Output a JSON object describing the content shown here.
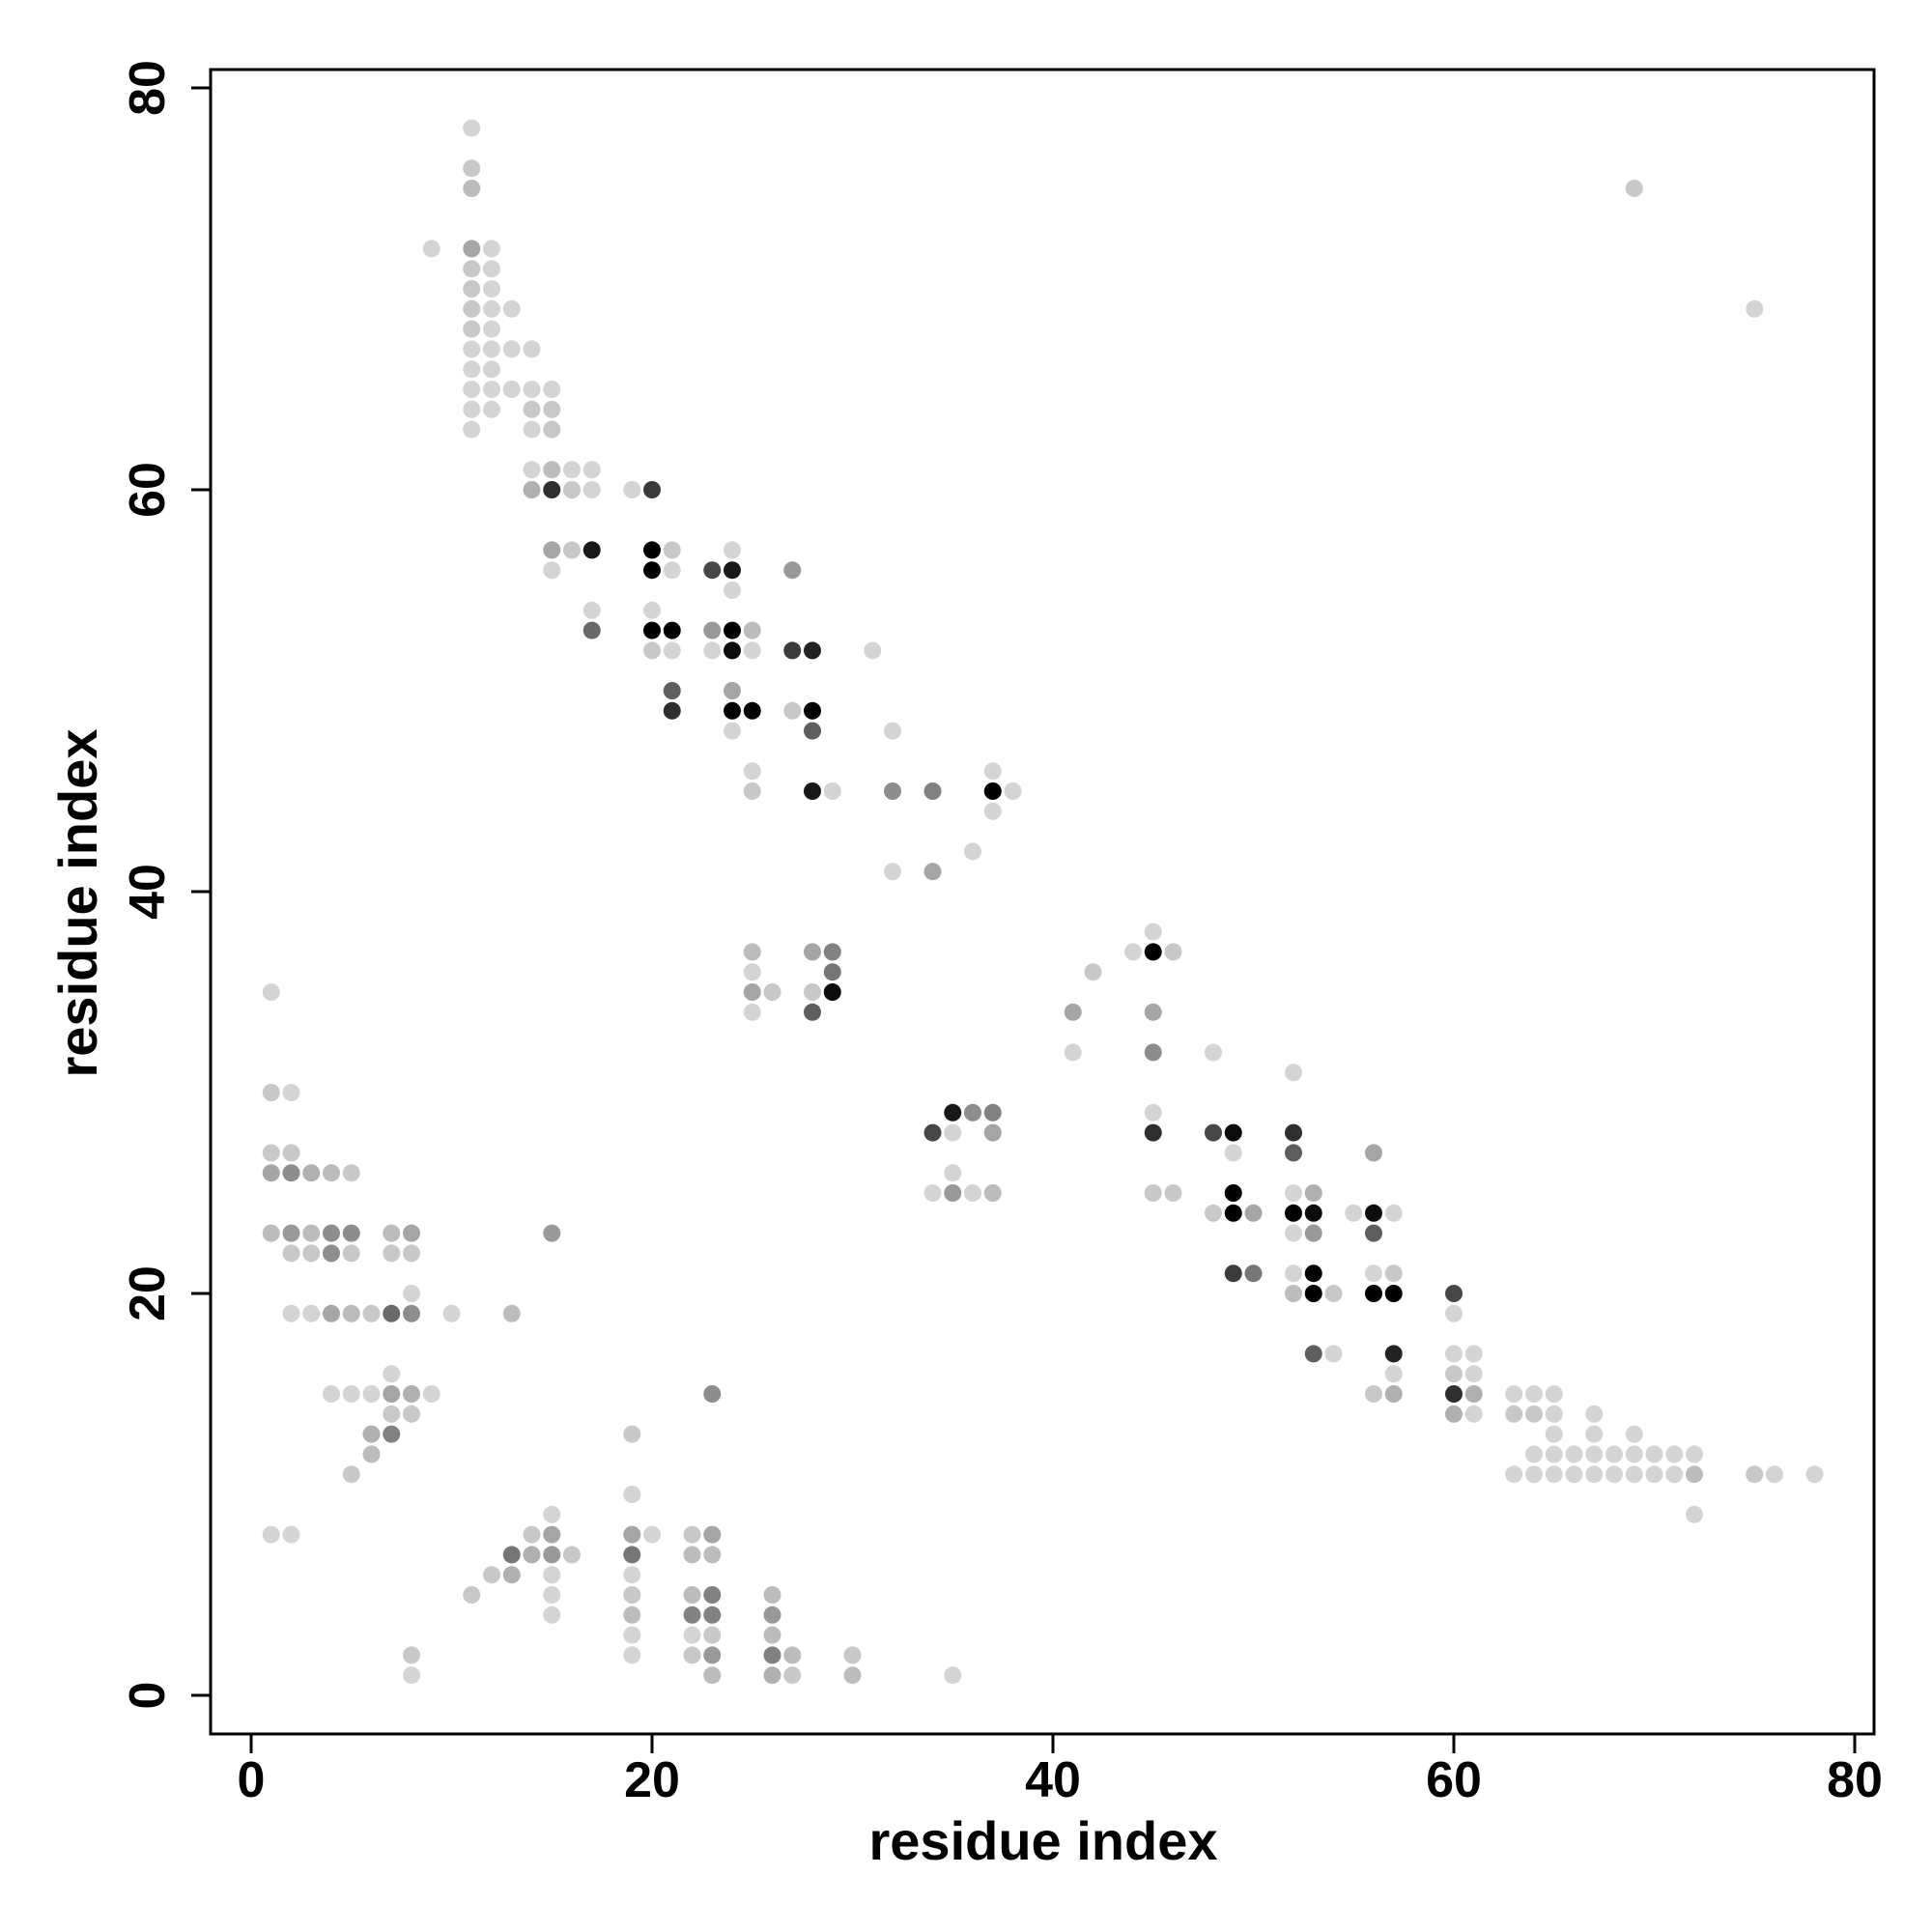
{
  "chart_data": {
    "type": "scatter",
    "title": "",
    "xlabel": "residue index",
    "ylabel": "residue index",
    "xlim": [
      -2,
      81
    ],
    "ylim": [
      -2,
      81
    ],
    "xticks": [
      0,
      20,
      40,
      60,
      80
    ],
    "yticks": [
      0,
      20,
      40,
      60,
      80
    ],
    "grid": false,
    "legend": "none",
    "marker_color": "#000000",
    "point_weight_scale": "0 = lightest gray, 1 = black",
    "points": [
      [
        11,
        78,
        0.1
      ],
      [
        11,
        76,
        0.15
      ],
      [
        11,
        75,
        0.2
      ],
      [
        9,
        72,
        0.1
      ],
      [
        11,
        72,
        0.3
      ],
      [
        12,
        72,
        0.1
      ],
      [
        11,
        71,
        0.15
      ],
      [
        12,
        71,
        0.1
      ],
      [
        11,
        70,
        0.15
      ],
      [
        12,
        70,
        0.1
      ],
      [
        11,
        69,
        0.15
      ],
      [
        12,
        69,
        0.1
      ],
      [
        13,
        69,
        0.1
      ],
      [
        11,
        68,
        0.15
      ],
      [
        12,
        68,
        0.1
      ],
      [
        11,
        67,
        0.1
      ],
      [
        12,
        67,
        0.1
      ],
      [
        13,
        67,
        0.1
      ],
      [
        14,
        67,
        0.1
      ],
      [
        11,
        66,
        0.1
      ],
      [
        12,
        66,
        0.1
      ],
      [
        11,
        65,
        0.1
      ],
      [
        12,
        65,
        0.1
      ],
      [
        13,
        65,
        0.1
      ],
      [
        14,
        65,
        0.1
      ],
      [
        15,
        65,
        0.1
      ],
      [
        11,
        64,
        0.1
      ],
      [
        12,
        64,
        0.1
      ],
      [
        14,
        64,
        0.15
      ],
      [
        15,
        64,
        0.15
      ],
      [
        11,
        63,
        0.1
      ],
      [
        14,
        63,
        0.1
      ],
      [
        15,
        63,
        0.15
      ],
      [
        14,
        61,
        0.1
      ],
      [
        15,
        61,
        0.2
      ],
      [
        16,
        61,
        0.1
      ],
      [
        17,
        61,
        0.1
      ],
      [
        14,
        60,
        0.25
      ],
      [
        15,
        60,
        0.8
      ],
      [
        16,
        60,
        0.15
      ],
      [
        17,
        60,
        0.1
      ],
      [
        19,
        60,
        0.1
      ],
      [
        20,
        60,
        0.75
      ],
      [
        15,
        57,
        0.3
      ],
      [
        16,
        57,
        0.15
      ],
      [
        17,
        57,
        0.9
      ],
      [
        20,
        57,
        1.0
      ],
      [
        21,
        57,
        0.15
      ],
      [
        24,
        57,
        0.1
      ],
      [
        15,
        56,
        0.1
      ],
      [
        20,
        56,
        1.0
      ],
      [
        21,
        56,
        0.1
      ],
      [
        23,
        56,
        0.7
      ],
      [
        24,
        56,
        0.9
      ],
      [
        27,
        56,
        0.35
      ],
      [
        24,
        55,
        0.1
      ],
      [
        17,
        54,
        0.1
      ],
      [
        20,
        54,
        0.1
      ],
      [
        17,
        53,
        0.55
      ],
      [
        20,
        53,
        1.0
      ],
      [
        21,
        53,
        1.0
      ],
      [
        23,
        53,
        0.35
      ],
      [
        24,
        53,
        1.0
      ],
      [
        25,
        53,
        0.2
      ],
      [
        20,
        52,
        0.15
      ],
      [
        21,
        52,
        0.1
      ],
      [
        23,
        52,
        0.1
      ],
      [
        24,
        52,
        0.95
      ],
      [
        25,
        52,
        0.1
      ],
      [
        27,
        52,
        0.75
      ],
      [
        28,
        52,
        0.85
      ],
      [
        31,
        52,
        0.1
      ],
      [
        21,
        50,
        0.6
      ],
      [
        24,
        50,
        0.3
      ],
      [
        21,
        49,
        0.8
      ],
      [
        24,
        49,
        1.0
      ],
      [
        25,
        49,
        1.0
      ],
      [
        27,
        49,
        0.15
      ],
      [
        28,
        49,
        1.0
      ],
      [
        24,
        48,
        0.1
      ],
      [
        28,
        48,
        0.6
      ],
      [
        32,
        48,
        0.1
      ],
      [
        25,
        46,
        0.1
      ],
      [
        37,
        46,
        0.1
      ],
      [
        25,
        45,
        0.15
      ],
      [
        28,
        45,
        0.9
      ],
      [
        29,
        45,
        0.1
      ],
      [
        32,
        45,
        0.4
      ],
      [
        34,
        45,
        0.45
      ],
      [
        37,
        45,
        1.0
      ],
      [
        38,
        45,
        0.1
      ],
      [
        37,
        44,
        0.1
      ],
      [
        36,
        42,
        0.1
      ],
      [
        32,
        41,
        0.1
      ],
      [
        34,
        41,
        0.3
      ],
      [
        45,
        38,
        0.1
      ],
      [
        25,
        37,
        0.2
      ],
      [
        28,
        37,
        0.3
      ],
      [
        29,
        37,
        0.45
      ],
      [
        44,
        37,
        0.1
      ],
      [
        45,
        37,
        1.0
      ],
      [
        46,
        37,
        0.15
      ],
      [
        25,
        36,
        0.1
      ],
      [
        29,
        36,
        0.5
      ],
      [
        42,
        36,
        0.15
      ],
      [
        1,
        35,
        0.1
      ],
      [
        25,
        35,
        0.3
      ],
      [
        26,
        35,
        0.15
      ],
      [
        28,
        35,
        0.15
      ],
      [
        29,
        35,
        0.95
      ],
      [
        25,
        34,
        0.1
      ],
      [
        28,
        34,
        0.6
      ],
      [
        41,
        34,
        0.3
      ],
      [
        45,
        34,
        0.3
      ],
      [
        41,
        32,
        0.1
      ],
      [
        45,
        32,
        0.4
      ],
      [
        48,
        32,
        0.1
      ],
      [
        52,
        31,
        0.1
      ],
      [
        1,
        30,
        0.15
      ],
      [
        2,
        30,
        0.1
      ],
      [
        35,
        29,
        0.9
      ],
      [
        36,
        29,
        0.4
      ],
      [
        37,
        29,
        0.45
      ],
      [
        45,
        29,
        0.1
      ],
      [
        34,
        28,
        0.7
      ],
      [
        35,
        28,
        0.1
      ],
      [
        37,
        28,
        0.3
      ],
      [
        45,
        28,
        0.8
      ],
      [
        48,
        28,
        0.7
      ],
      [
        49,
        28,
        0.95
      ],
      [
        52,
        28,
        0.8
      ],
      [
        1,
        27,
        0.15
      ],
      [
        2,
        27,
        0.15
      ],
      [
        49,
        27,
        0.1
      ],
      [
        52,
        27,
        0.6
      ],
      [
        56,
        27,
        0.3
      ],
      [
        1,
        26,
        0.3
      ],
      [
        2,
        26,
        0.4
      ],
      [
        3,
        26,
        0.25
      ],
      [
        4,
        26,
        0.2
      ],
      [
        5,
        26,
        0.15
      ],
      [
        35,
        26,
        0.1
      ],
      [
        34,
        25,
        0.1
      ],
      [
        35,
        25,
        0.35
      ],
      [
        36,
        25,
        0.1
      ],
      [
        37,
        25,
        0.2
      ],
      [
        45,
        25,
        0.15
      ],
      [
        46,
        25,
        0.15
      ],
      [
        49,
        25,
        1.0
      ],
      [
        52,
        25,
        0.1
      ],
      [
        53,
        25,
        0.25
      ],
      [
        48,
        24,
        0.15
      ],
      [
        49,
        24,
        1.0
      ],
      [
        50,
        24,
        0.3
      ],
      [
        52,
        24,
        1.0
      ],
      [
        53,
        24,
        0.95
      ],
      [
        55,
        24,
        0.1
      ],
      [
        56,
        24,
        0.95
      ],
      [
        57,
        24,
        0.1
      ],
      [
        1,
        23,
        0.2
      ],
      [
        2,
        23,
        0.35
      ],
      [
        3,
        23,
        0.2
      ],
      [
        4,
        23,
        0.4
      ],
      [
        5,
        23,
        0.4
      ],
      [
        7,
        23,
        0.2
      ],
      [
        8,
        23,
        0.3
      ],
      [
        15,
        23,
        0.35
      ],
      [
        52,
        23,
        0.1
      ],
      [
        53,
        23,
        0.35
      ],
      [
        56,
        23,
        0.6
      ],
      [
        2,
        22,
        0.15
      ],
      [
        3,
        22,
        0.15
      ],
      [
        4,
        22,
        0.4
      ],
      [
        5,
        22,
        0.15
      ],
      [
        7,
        22,
        0.15
      ],
      [
        8,
        22,
        0.15
      ],
      [
        49,
        21,
        0.75
      ],
      [
        50,
        21,
        0.5
      ],
      [
        52,
        21,
        0.1
      ],
      [
        53,
        21,
        1.0
      ],
      [
        56,
        21,
        0.1
      ],
      [
        57,
        21,
        0.15
      ],
      [
        8,
        20,
        0.1
      ],
      [
        52,
        20,
        0.2
      ],
      [
        53,
        20,
        1.0
      ],
      [
        54,
        20,
        0.15
      ],
      [
        56,
        20,
        1.0
      ],
      [
        57,
        20,
        1.0
      ],
      [
        60,
        20,
        0.7
      ],
      [
        2,
        19,
        0.1
      ],
      [
        3,
        19,
        0.1
      ],
      [
        4,
        19,
        0.3
      ],
      [
        5,
        19,
        0.2
      ],
      [
        6,
        19,
        0.15
      ],
      [
        7,
        19,
        0.55
      ],
      [
        8,
        19,
        0.4
      ],
      [
        10,
        19,
        0.1
      ],
      [
        13,
        19,
        0.2
      ],
      [
        60,
        19,
        0.1
      ],
      [
        60,
        17,
        0.1
      ],
      [
        61,
        17,
        0.1
      ],
      [
        53,
        17,
        0.6
      ],
      [
        54,
        17,
        0.1
      ],
      [
        57,
        17,
        0.85
      ],
      [
        7,
        16,
        0.1
      ],
      [
        57,
        16,
        0.1
      ],
      [
        60,
        16,
        0.15
      ],
      [
        61,
        16,
        0.1
      ],
      [
        4,
        15,
        0.1
      ],
      [
        5,
        15,
        0.1
      ],
      [
        6,
        15,
        0.1
      ],
      [
        7,
        15,
        0.3
      ],
      [
        8,
        15,
        0.25
      ],
      [
        9,
        15,
        0.1
      ],
      [
        23,
        15,
        0.4
      ],
      [
        56,
        15,
        0.15
      ],
      [
        57,
        15,
        0.25
      ],
      [
        60,
        15,
        0.8
      ],
      [
        61,
        15,
        0.25
      ],
      [
        63,
        15,
        0.1
      ],
      [
        64,
        15,
        0.1
      ],
      [
        65,
        15,
        0.1
      ],
      [
        7,
        14,
        0.15
      ],
      [
        8,
        14,
        0.15
      ],
      [
        60,
        14,
        0.25
      ],
      [
        61,
        14,
        0.1
      ],
      [
        63,
        14,
        0.15
      ],
      [
        64,
        14,
        0.15
      ],
      [
        65,
        14,
        0.1
      ],
      [
        67,
        14,
        0.1
      ],
      [
        6,
        13,
        0.25
      ],
      [
        7,
        13,
        0.45
      ],
      [
        19,
        13,
        0.15
      ],
      [
        65,
        13,
        0.1
      ],
      [
        67,
        13,
        0.1
      ],
      [
        69,
        13,
        0.1
      ],
      [
        6,
        12,
        0.2
      ],
      [
        64,
        12,
        0.1
      ],
      [
        65,
        12,
        0.1
      ],
      [
        66,
        12,
        0.1
      ],
      [
        67,
        12,
        0.1
      ],
      [
        68,
        12,
        0.1
      ],
      [
        69,
        12,
        0.1
      ],
      [
        70,
        12,
        0.1
      ],
      [
        71,
        12,
        0.1
      ],
      [
        72,
        12,
        0.1
      ],
      [
        5,
        11,
        0.15
      ],
      [
        63,
        11,
        0.1
      ],
      [
        64,
        11,
        0.1
      ],
      [
        65,
        11,
        0.1
      ],
      [
        66,
        11,
        0.1
      ],
      [
        67,
        11,
        0.1
      ],
      [
        68,
        11,
        0.1
      ],
      [
        69,
        11,
        0.1
      ],
      [
        70,
        11,
        0.1
      ],
      [
        71,
        11,
        0.1
      ],
      [
        72,
        11,
        0.2
      ],
      [
        75,
        11,
        0.15
      ],
      [
        76,
        11,
        0.1
      ],
      [
        78,
        11,
        0.1
      ],
      [
        19,
        10,
        0.1
      ],
      [
        15,
        9,
        0.1
      ],
      [
        72,
        9,
        0.1
      ],
      [
        1,
        8,
        0.1
      ],
      [
        2,
        8,
        0.1
      ],
      [
        14,
        8,
        0.15
      ],
      [
        15,
        8,
        0.3
      ],
      [
        19,
        8,
        0.3
      ],
      [
        20,
        8,
        0.1
      ],
      [
        22,
        8,
        0.15
      ],
      [
        23,
        8,
        0.3
      ],
      [
        13,
        7,
        0.5
      ],
      [
        14,
        7,
        0.25
      ],
      [
        15,
        7,
        0.35
      ],
      [
        16,
        7,
        0.15
      ],
      [
        19,
        7,
        0.5
      ],
      [
        22,
        7,
        0.2
      ],
      [
        23,
        7,
        0.2
      ],
      [
        12,
        6,
        0.15
      ],
      [
        13,
        6,
        0.25
      ],
      [
        15,
        6,
        0.1
      ],
      [
        19,
        6,
        0.1
      ],
      [
        11,
        5,
        0.15
      ],
      [
        15,
        5,
        0.1
      ],
      [
        19,
        5,
        0.15
      ],
      [
        22,
        5,
        0.2
      ],
      [
        23,
        5,
        0.45
      ],
      [
        26,
        5,
        0.2
      ],
      [
        15,
        4,
        0.1
      ],
      [
        19,
        4,
        0.2
      ],
      [
        22,
        4,
        0.45
      ],
      [
        23,
        4,
        0.45
      ],
      [
        26,
        4,
        0.35
      ],
      [
        19,
        3,
        0.1
      ],
      [
        22,
        3,
        0.1
      ],
      [
        23,
        3,
        0.15
      ],
      [
        26,
        3,
        0.2
      ],
      [
        8,
        2,
        0.15
      ],
      [
        19,
        2,
        0.1
      ],
      [
        22,
        2,
        0.15
      ],
      [
        23,
        2,
        0.35
      ],
      [
        26,
        2,
        0.45
      ],
      [
        27,
        2,
        0.2
      ],
      [
        30,
        2,
        0.15
      ],
      [
        8,
        1,
        0.1
      ],
      [
        23,
        1,
        0.2
      ],
      [
        26,
        1,
        0.25
      ],
      [
        27,
        1,
        0.15
      ],
      [
        30,
        1,
        0.2
      ],
      [
        35,
        1,
        0.1
      ],
      [
        69,
        75,
        0.15
      ],
      [
        75,
        69,
        0.1
      ]
    ]
  }
}
